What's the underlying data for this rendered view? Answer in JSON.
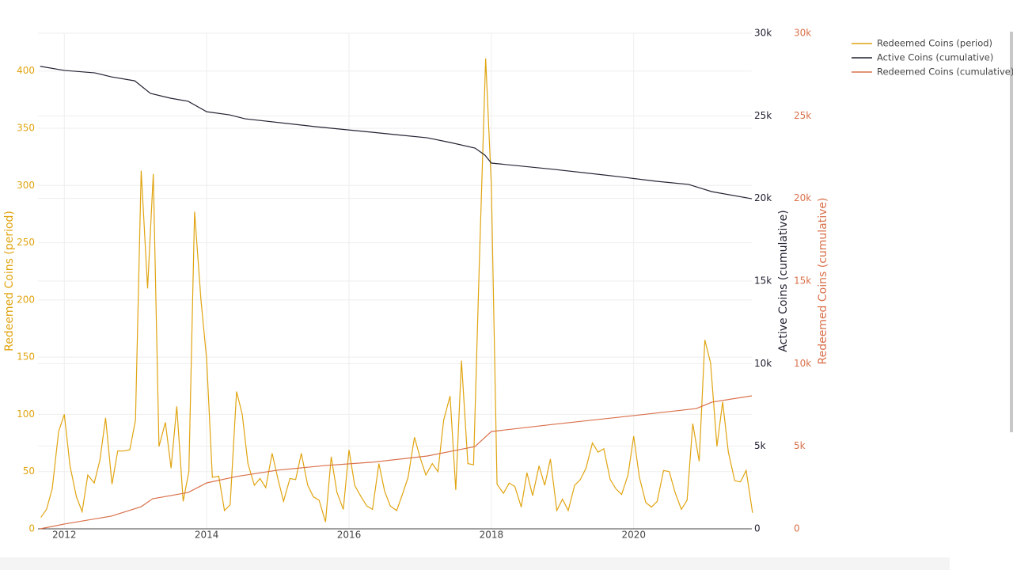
{
  "chart_data": {
    "type": "line",
    "xlim": [
      2011.63,
      2021.66
    ],
    "xticks": [
      2012,
      2014,
      2016,
      2018,
      2020
    ],
    "ylim": [
      0,
      433
    ],
    "yticks": [
      0,
      50,
      100,
      150,
      200,
      250,
      300,
      350,
      400
    ],
    "ylabel": "Redeemed Coins (period)",
    "y2lim": [
      0,
      30000
    ],
    "y2ticks": [
      0,
      {
        "value": 5000,
        "label": "5k"
      },
      {
        "value": 10000,
        "label": "10k"
      },
      {
        "value": 15000,
        "label": "15k"
      },
      {
        "value": 20000,
        "label": "20k"
      },
      {
        "value": 25000,
        "label": "25k"
      },
      {
        "value": 30000,
        "label": "30k"
      }
    ],
    "y2label": "Active Coins (cumulative)",
    "y3lim": [
      0,
      30000
    ],
    "y3ticks": [
      0,
      {
        "value": 5000,
        "label": "5k"
      },
      {
        "value": 10000,
        "label": "10k"
      },
      {
        "value": 15000,
        "label": "15k"
      },
      {
        "value": 20000,
        "label": "20k"
      },
      {
        "value": 25000,
        "label": "25k"
      },
      {
        "value": 30000,
        "label": "30k"
      }
    ],
    "y3label": "Redeemed Coins (cumulative)",
    "grid": true,
    "legend": "top-right",
    "series": [
      {
        "name": "Redeemed Coins (period)",
        "color": "#e0a410",
        "axis": "y",
        "x": [
          2011.67,
          2011.75,
          2011.83,
          2011.92,
          2012.0,
          2012.08,
          2012.17,
          2012.25,
          2012.33,
          2012.42,
          2012.5,
          2012.58,
          2012.67,
          2012.75,
          2012.83,
          2012.92,
          2013.0,
          2013.08,
          2013.17,
          2013.25,
          2013.33,
          2013.42,
          2013.5,
          2013.58,
          2013.67,
          2013.75,
          2013.83,
          2013.92,
          2014.0,
          2014.08,
          2014.17,
          2014.25,
          2014.33,
          2014.42,
          2014.5,
          2014.58,
          2014.67,
          2014.75,
          2014.83,
          2014.92,
          2015.0,
          2015.08,
          2015.17,
          2015.25,
          2015.33,
          2015.42,
          2015.5,
          2015.58,
          2015.67,
          2015.75,
          2015.83,
          2015.92,
          2016.0,
          2016.08,
          2016.17,
          2016.25,
          2016.33,
          2016.42,
          2016.5,
          2016.58,
          2016.67,
          2016.75,
          2016.83,
          2016.92,
          2017.0,
          2017.08,
          2017.17,
          2017.25,
          2017.33,
          2017.42,
          2017.5,
          2017.58,
          2017.67,
          2017.75,
          2017.83,
          2017.92,
          2018.0,
          2018.08,
          2018.17,
          2018.25,
          2018.33,
          2018.42,
          2018.5,
          2018.58,
          2018.67,
          2018.75,
          2018.83,
          2018.92,
          2019.0,
          2019.08,
          2019.17,
          2019.25,
          2019.33,
          2019.42,
          2019.5,
          2019.58,
          2019.67,
          2019.75,
          2019.83,
          2019.92,
          2020.0,
          2020.08,
          2020.17,
          2020.25,
          2020.33,
          2020.42,
          2020.5,
          2020.58,
          2020.67,
          2020.75,
          2020.83,
          2020.92,
          2021.0,
          2021.08,
          2021.17,
          2021.25,
          2021.33,
          2021.42,
          2021.5,
          2021.58,
          2021.67
        ],
        "values": [
          10,
          17,
          35,
          85,
          100,
          55,
          28,
          15,
          47,
          40,
          60,
          97,
          39,
          68,
          68,
          69,
          95,
          313,
          210,
          310,
          72,
          93,
          53,
          107,
          24,
          50,
          277,
          200,
          148,
          45,
          46,
          16,
          21,
          120,
          100,
          57,
          38,
          44,
          36,
          66,
          44,
          24,
          44,
          43,
          66,
          38,
          28,
          25,
          6,
          63,
          32,
          17,
          69,
          38,
          28,
          20,
          17,
          57,
          33,
          20,
          16,
          30,
          45,
          80,
          62,
          47,
          57,
          50,
          95,
          116,
          34,
          147,
          57,
          56,
          230,
          411,
          300,
          39,
          31,
          40,
          37,
          19,
          49,
          29,
          55,
          38,
          61,
          16,
          26,
          16,
          38,
          43,
          53,
          75,
          67,
          70,
          43,
          35,
          30,
          47,
          81,
          45,
          23,
          19,
          24,
          51,
          50,
          32,
          17,
          25,
          92,
          59,
          165,
          145,
          72,
          111,
          67,
          42,
          41,
          51,
          14
        ]
      },
      {
        "name": "Active Coins (cumulative)",
        "color": "#222233",
        "axis": "y2",
        "x": [
          2011.66,
          2012,
          2012.43,
          2012.66,
          2012.99,
          2013.21,
          2013.49,
          2013.74,
          2014,
          2014.32,
          2014.54,
          2015.54,
          2016.32,
          2017.1,
          2017.43,
          2017.77,
          2017.91,
          2018,
          2018.88,
          2019.77,
          2020.32,
          2020.77,
          2021.1,
          2021.66
        ],
        "values": [
          28000,
          27750,
          27600,
          27360,
          27120,
          26360,
          26070,
          25880,
          25250,
          25060,
          24820,
          24340,
          24010,
          23670,
          23380,
          23050,
          22620,
          22140,
          21760,
          21330,
          21040,
          20850,
          20410,
          19980
        ]
      },
      {
        "name": "Redeemed Coins (cumulative)",
        "color": "#d9704a",
        "axis": "y3",
        "x": [
          2011.66,
          2012,
          2012.66,
          2013.08,
          2013.24,
          2013.74,
          2014,
          2014.41,
          2014.99,
          2015.66,
          2016.32,
          2017.1,
          2017.49,
          2017.77,
          2018,
          2018.88,
          2019.99,
          2020.88,
          2021.1,
          2021.66
        ],
        "values": [
          0,
          290,
          770,
          1340,
          1820,
          2200,
          2780,
          3160,
          3550,
          3830,
          4030,
          4410,
          4740,
          4980,
          5890,
          6330,
          6850,
          7280,
          7670,
          8050
        ]
      }
    ]
  }
}
